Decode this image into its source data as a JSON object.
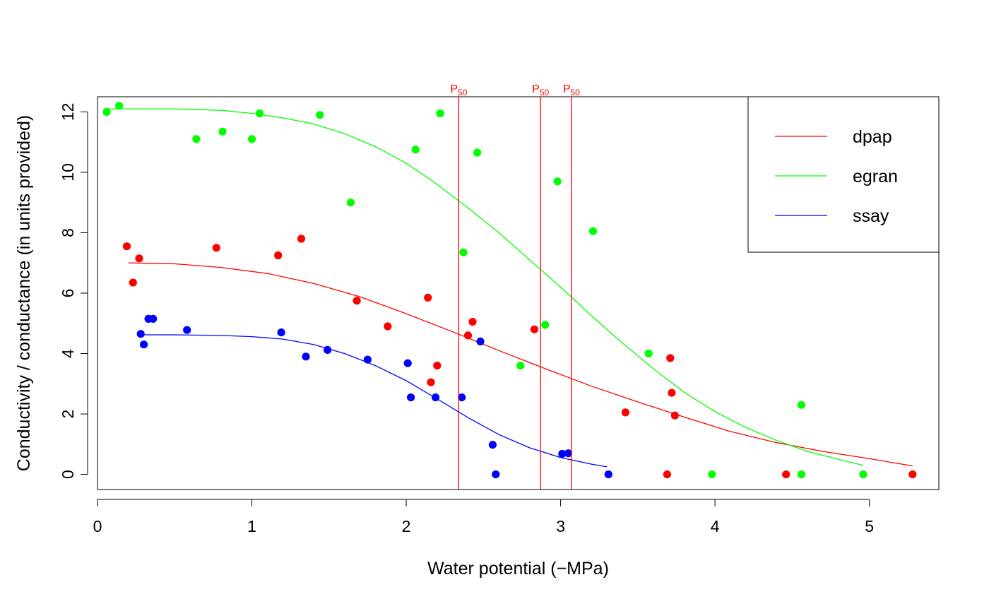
{
  "chart_data": {
    "type": "scatter",
    "title": "",
    "xlabel": "Water potential  (−MPa)",
    "ylabel": "Conductivity / conductance (in units provided)",
    "xlim": [
      0,
      5.45
    ],
    "ylim": [
      -0.5,
      12.5
    ],
    "xticks": [
      0,
      1,
      2,
      3,
      4,
      5
    ],
    "yticks": [
      0,
      2,
      4,
      6,
      8,
      10,
      12
    ],
    "grid": false,
    "legend_position": "top-right",
    "p50_label": {
      "main": "P",
      "sub": "50"
    },
    "p50_lines": [
      {
        "x": 2.34,
        "color": "#ff0000"
      },
      {
        "x": 2.87,
        "color": "#ff0000"
      },
      {
        "x": 3.07,
        "color": "#ff0000"
      }
    ],
    "series": [
      {
        "name": "dpap",
        "color": "#ff0000",
        "points": [
          [
            0.19,
            7.55
          ],
          [
            0.23,
            6.35
          ],
          [
            0.27,
            7.15
          ],
          [
            0.77,
            7.5
          ],
          [
            1.17,
            7.25
          ],
          [
            1.32,
            7.8
          ],
          [
            1.68,
            5.75
          ],
          [
            1.88,
            4.9
          ],
          [
            2.14,
            5.85
          ],
          [
            2.16,
            3.05
          ],
          [
            2.2,
            3.6
          ],
          [
            2.4,
            4.6
          ],
          [
            2.43,
            5.05
          ],
          [
            2.83,
            4.8
          ],
          [
            3.42,
            2.05
          ],
          [
            3.69,
            0.0
          ],
          [
            3.71,
            3.85
          ],
          [
            3.72,
            2.7
          ],
          [
            3.74,
            1.95
          ],
          [
            4.46,
            0.0
          ],
          [
            5.28,
            0.0
          ]
        ],
        "fit": [
          [
            0.2,
            7.0
          ],
          [
            0.5,
            6.97
          ],
          [
            0.8,
            6.85
          ],
          [
            1.1,
            6.65
          ],
          [
            1.4,
            6.32
          ],
          [
            1.7,
            5.88
          ],
          [
            2.0,
            5.32
          ],
          [
            2.3,
            4.72
          ],
          [
            2.6,
            4.1
          ],
          [
            2.9,
            3.5
          ],
          [
            3.2,
            2.92
          ],
          [
            3.5,
            2.4
          ],
          [
            3.8,
            1.9
          ],
          [
            4.1,
            1.42
          ],
          [
            4.4,
            1.05
          ],
          [
            4.7,
            0.76
          ],
          [
            5.0,
            0.52
          ],
          [
            5.28,
            0.28
          ]
        ]
      },
      {
        "name": "egran",
        "color": "#00ff00",
        "points": [
          [
            0.06,
            12.0
          ],
          [
            0.14,
            12.2
          ],
          [
            0.64,
            11.1
          ],
          [
            0.81,
            11.35
          ],
          [
            1.0,
            11.1
          ],
          [
            1.05,
            11.95
          ],
          [
            1.44,
            11.9
          ],
          [
            1.64,
            9.0
          ],
          [
            2.06,
            10.75
          ],
          [
            2.22,
            11.95
          ],
          [
            2.37,
            7.35
          ],
          [
            2.46,
            10.65
          ],
          [
            2.74,
            3.6
          ],
          [
            2.9,
            4.95
          ],
          [
            2.98,
            9.7
          ],
          [
            3.21,
            8.05
          ],
          [
            3.57,
            4.0
          ],
          [
            3.98,
            0.0
          ],
          [
            4.56,
            2.3
          ],
          [
            4.56,
            0.0
          ],
          [
            4.96,
            0.0
          ]
        ],
        "fit": [
          [
            0.06,
            12.1
          ],
          [
            0.5,
            12.1
          ],
          [
            0.8,
            12.05
          ],
          [
            1.0,
            11.95
          ],
          [
            1.2,
            11.8
          ],
          [
            1.4,
            11.6
          ],
          [
            1.6,
            11.28
          ],
          [
            1.8,
            10.85
          ],
          [
            2.0,
            10.3
          ],
          [
            2.2,
            9.6
          ],
          [
            2.4,
            8.82
          ],
          [
            2.6,
            8.0
          ],
          [
            2.8,
            7.1
          ],
          [
            3.0,
            6.2
          ],
          [
            3.2,
            5.25
          ],
          [
            3.4,
            4.35
          ],
          [
            3.6,
            3.5
          ],
          [
            3.8,
            2.72
          ],
          [
            4.0,
            2.08
          ],
          [
            4.2,
            1.55
          ],
          [
            4.4,
            1.12
          ],
          [
            4.6,
            0.76
          ],
          [
            4.8,
            0.5
          ],
          [
            4.96,
            0.3
          ]
        ]
      },
      {
        "name": "ssay",
        "color": "#0000ff",
        "points": [
          [
            0.28,
            4.65
          ],
          [
            0.3,
            4.3
          ],
          [
            0.33,
            5.15
          ],
          [
            0.36,
            5.15
          ],
          [
            0.58,
            4.78
          ],
          [
            1.19,
            4.7
          ],
          [
            1.35,
            3.9
          ],
          [
            1.49,
            4.12
          ],
          [
            1.75,
            3.8
          ],
          [
            2.01,
            3.68
          ],
          [
            2.03,
            2.55
          ],
          [
            2.19,
            2.55
          ],
          [
            2.36,
            2.55
          ],
          [
            2.48,
            4.4
          ],
          [
            2.56,
            0.98
          ],
          [
            2.58,
            0.0
          ],
          [
            3.01,
            0.68
          ],
          [
            3.05,
            0.7
          ],
          [
            3.31,
            0.0
          ]
        ],
        "fit": [
          [
            0.28,
            4.62
          ],
          [
            0.5,
            4.62
          ],
          [
            0.8,
            4.6
          ],
          [
            1.0,
            4.56
          ],
          [
            1.2,
            4.48
          ],
          [
            1.4,
            4.3
          ],
          [
            1.6,
            4.0
          ],
          [
            1.8,
            3.6
          ],
          [
            2.0,
            3.1
          ],
          [
            2.2,
            2.5
          ],
          [
            2.4,
            1.88
          ],
          [
            2.6,
            1.32
          ],
          [
            2.8,
            0.88
          ],
          [
            3.0,
            0.56
          ],
          [
            3.2,
            0.34
          ],
          [
            3.3,
            0.25
          ]
        ]
      }
    ]
  }
}
